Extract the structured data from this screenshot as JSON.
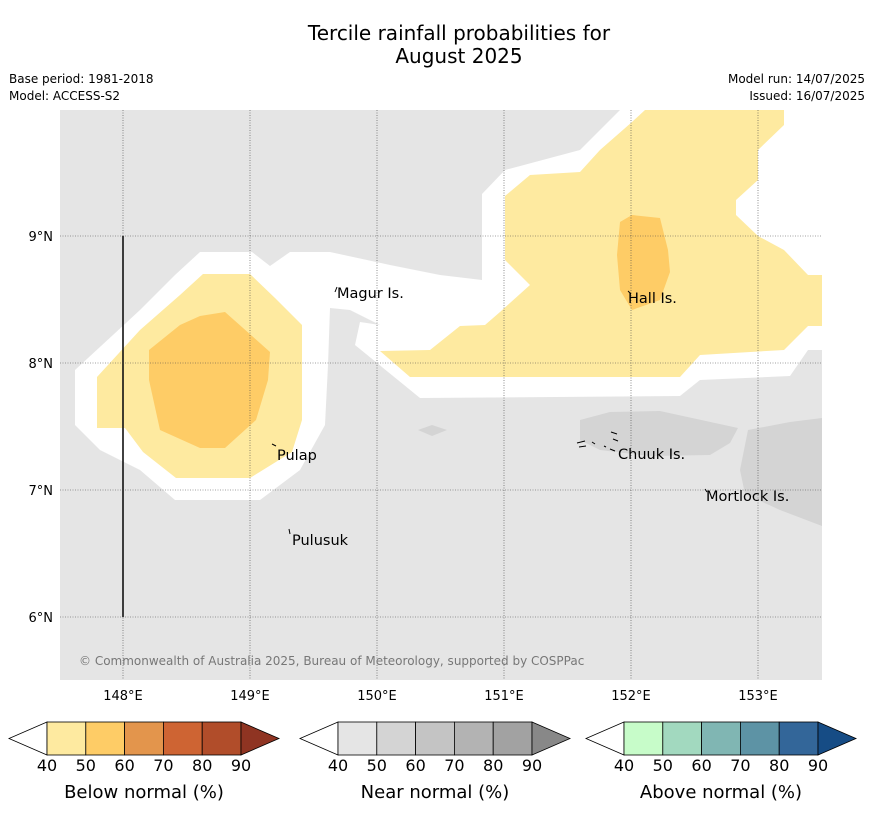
{
  "title_line1": "Tercile rainfall probabilities for",
  "title_line2": "August 2025",
  "meta": {
    "base_period": "Base period: 1981-2018",
    "model": "Model: ACCESS-S2",
    "model_run": "Model run: 14/07/2025",
    "issued": "Issued: 16/07/2025"
  },
  "map": {
    "lon_ticks": [
      "148°E",
      "149°E",
      "150°E",
      "151°E",
      "152°E",
      "153°E"
    ],
    "lat_ticks": [
      "9°N",
      "8°N",
      "7°N",
      "6°N"
    ],
    "places": [
      {
        "name": "Magur Is."
      },
      {
        "name": "Hall Is."
      },
      {
        "name": "Pulap"
      },
      {
        "name": "Chuuk Is."
      },
      {
        "name": "Mortlock Is."
      },
      {
        "name": "Pulusuk"
      }
    ],
    "copyright": "© Commonwealth of Australia 2025, Bureau of Meteorology, supported by COSPPac",
    "colors": {
      "ocean_default": "#e5e5e5",
      "near_50": "#d4d4d4",
      "below_40": "#feeaa0",
      "below_50": "#fecc66"
    }
  },
  "colorbars": [
    {
      "title": "Below normal (%)",
      "ticks": [
        "40",
        "50",
        "60",
        "70",
        "80",
        "90"
      ],
      "colors": [
        "#feeaa0",
        "#fecc66",
        "#e3954c",
        "#ce6433",
        "#b14d2a",
        "#8f3422"
      ]
    },
    {
      "title": "Near normal (%)",
      "ticks": [
        "40",
        "50",
        "60",
        "70",
        "80",
        "90"
      ],
      "colors": [
        "#e5e5e5",
        "#d4d4d4",
        "#c4c4c4",
        "#b3b3b3",
        "#a2a2a2",
        "#888888"
      ]
    },
    {
      "title": "Above normal (%)",
      "ticks": [
        "40",
        "50",
        "60",
        "70",
        "80",
        "90"
      ],
      "colors": [
        "#c7fcc9",
        "#a2d9bf",
        "#80b6b3",
        "#5d93a5",
        "#336699",
        "#164c85"
      ]
    }
  ]
}
